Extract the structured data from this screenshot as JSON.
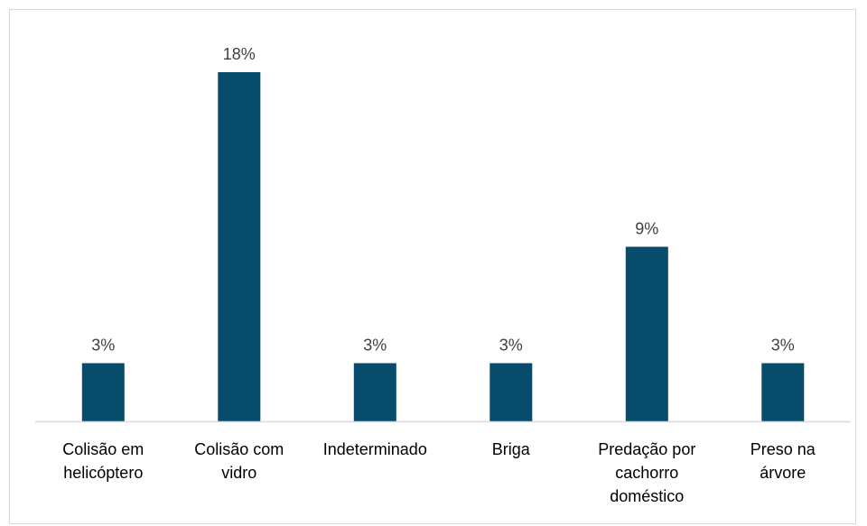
{
  "chart_data": {
    "type": "bar",
    "categories": [
      [
        "Colisão em",
        "helicóptero"
      ],
      [
        "Colisão com",
        "vidro"
      ],
      [
        "Indeterminado"
      ],
      [
        "Briga"
      ],
      [
        "Predação por",
        "cachorro",
        "doméstico"
      ],
      [
        "Preso na",
        "árvore"
      ]
    ],
    "values": [
      3,
      18,
      3,
      3,
      9,
      3
    ],
    "data_labels": [
      "3%",
      "18%",
      "3%",
      "3%",
      "9%",
      "3%"
    ],
    "unit": "%",
    "ylim": [
      0,
      18
    ],
    "grid": false,
    "bar_color": "#084c6c",
    "axis_color": "#d9d9d9"
  }
}
